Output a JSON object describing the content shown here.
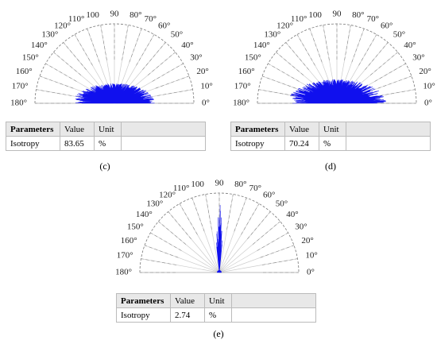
{
  "panels": [
    {
      "angle_labels": [
        "180°",
        "170°",
        "160°",
        "150°",
        "140°",
        "130°",
        "120°",
        "110°",
        "100",
        "90",
        "80°",
        "70°",
        "60°",
        "50°",
        "40°",
        "30°",
        "20°",
        "10°",
        "0°"
      ],
      "table": {
        "header": [
          "Parameters",
          "Value",
          "Unit"
        ],
        "rows": [
          [
            "Isotropy",
            "83.65",
            "%"
          ]
        ]
      },
      "caption": "(c)"
    },
    {
      "angle_labels": [
        "180°",
        "170°",
        "160°",
        "150°",
        "140°",
        "130°",
        "120°",
        "110°",
        "100",
        "90",
        "80°",
        "70°",
        "60°",
        "50°",
        "40°",
        "30°",
        "20°",
        "10°",
        "0°"
      ],
      "table": {
        "header": [
          "Parameters",
          "Value",
          "Unit"
        ],
        "rows": [
          [
            "Isotropy",
            "70.24",
            "%"
          ]
        ]
      },
      "caption": "(d)"
    },
    {
      "angle_labels": [
        "180°",
        "170°",
        "160°",
        "150°",
        "140°",
        "130°",
        "120°",
        "110°",
        "100",
        "90",
        "80°",
        "70°",
        "60°",
        "50°",
        "40°",
        "30°",
        "20°",
        "10°",
        "0°"
      ],
      "table": {
        "header": [
          "Parameters",
          "Value",
          "Unit"
        ],
        "rows": [
          [
            "Isotropy",
            "2.74",
            "%"
          ]
        ]
      },
      "caption": "(e)"
    }
  ]
}
